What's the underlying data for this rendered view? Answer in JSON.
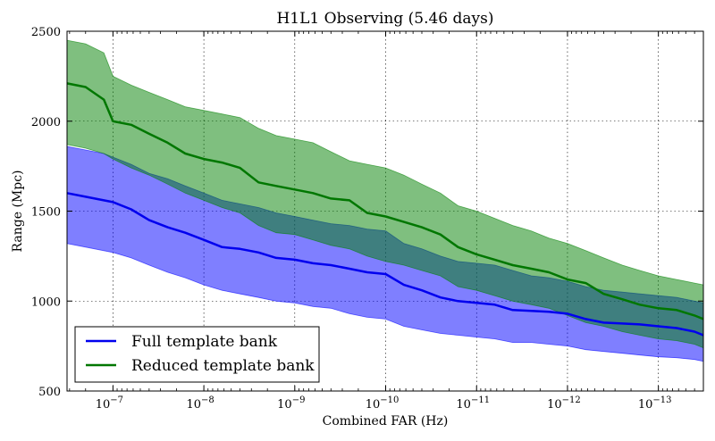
{
  "chart_data": {
    "type": "line",
    "title": "H1L1 Observing (5.46 days)",
    "xlabel": "Combined FAR (Hz)",
    "ylabel": "Range (Mpc)",
    "x_scale": "log",
    "x_reversed": true,
    "xlim": [
      3.2e-07,
      3.2e-14
    ],
    "ylim": [
      500,
      2500
    ],
    "grid": true,
    "legend_position": "lower-left",
    "x_ticks": [
      {
        "value": 1e-07,
        "base": "10",
        "exp": "−7"
      },
      {
        "value": 1e-08,
        "base": "10",
        "exp": "−8"
      },
      {
        "value": 1e-09,
        "base": "10",
        "exp": "−9"
      },
      {
        "value": 1e-10,
        "base": "10",
        "exp": "−10"
      },
      {
        "value": 1e-11,
        "base": "10",
        "exp": "−11"
      },
      {
        "value": 1e-12,
        "base": "10",
        "exp": "−12"
      },
      {
        "value": 1e-13,
        "base": "10",
        "exp": "−13"
      }
    ],
    "y_ticks": [
      {
        "value": 500,
        "label": "500"
      },
      {
        "value": 1000,
        "label": "1000"
      },
      {
        "value": 1500,
        "label": "1500"
      },
      {
        "value": 2000,
        "label": "2000"
      },
      {
        "value": 2500,
        "label": "2500"
      }
    ],
    "x": [
      3.2e-07,
      2e-07,
      1.26e-07,
      1e-07,
      6.3e-08,
      4e-08,
      2.5e-08,
      1.6e-08,
      1e-08,
      6.3e-09,
      4e-09,
      2.5e-09,
      1.6e-09,
      1e-09,
      6.3e-10,
      4e-10,
      2.5e-10,
      1.6e-10,
      1e-10,
      6.3e-11,
      4e-11,
      2.5e-11,
      1.6e-11,
      1e-11,
      6.3e-12,
      4e-12,
      2.5e-12,
      1.6e-12,
      1e-12,
      6.3e-13,
      4e-13,
      2.5e-13,
      1.6e-13,
      1e-13,
      6.3e-14,
      4e-14,
      3.2e-14
    ],
    "series": [
      {
        "name": "Full template bank",
        "color": "#0000ee",
        "band_color": "#0000ff",
        "values": [
          1600,
          1580,
          1560,
          1550,
          1510,
          1450,
          1410,
          1380,
          1340,
          1300,
          1290,
          1270,
          1240,
          1230,
          1210,
          1200,
          1180,
          1160,
          1150,
          1090,
          1060,
          1020,
          1000,
          990,
          980,
          950,
          945,
          940,
          930,
          900,
          880,
          875,
          870,
          860,
          850,
          830,
          810
        ],
        "lower": [
          1320,
          1300,
          1280,
          1270,
          1240,
          1200,
          1160,
          1130,
          1090,
          1060,
          1040,
          1020,
          1000,
          990,
          970,
          960,
          930,
          910,
          900,
          860,
          840,
          820,
          810,
          800,
          790,
          770,
          770,
          760,
          750,
          730,
          720,
          710,
          700,
          690,
          685,
          675,
          665
        ],
        "upper": [
          1860,
          1840,
          1820,
          1800,
          1760,
          1710,
          1680,
          1640,
          1600,
          1560,
          1540,
          1520,
          1490,
          1470,
          1450,
          1430,
          1420,
          1400,
          1390,
          1320,
          1290,
          1250,
          1220,
          1210,
          1200,
          1170,
          1140,
          1130,
          1110,
          1080,
          1060,
          1050,
          1040,
          1030,
          1020,
          1000,
          990
        ]
      },
      {
        "name": "Reduced template bank",
        "color": "#007700",
        "band_color": "#008000",
        "values": [
          2210,
          2190,
          2120,
          2000,
          1980,
          1930,
          1880,
          1820,
          1790,
          1770,
          1740,
          1660,
          1640,
          1620,
          1600,
          1570,
          1560,
          1490,
          1470,
          1440,
          1410,
          1370,
          1300,
          1260,
          1230,
          1200,
          1180,
          1160,
          1120,
          1100,
          1040,
          1010,
          980,
          960,
          950,
          920,
          900
        ],
        "lower": [
          1870,
          1850,
          1820,
          1790,
          1740,
          1700,
          1650,
          1600,
          1560,
          1520,
          1490,
          1420,
          1380,
          1370,
          1340,
          1310,
          1290,
          1250,
          1220,
          1200,
          1170,
          1140,
          1080,
          1060,
          1030,
          1000,
          980,
          960,
          920,
          880,
          860,
          830,
          810,
          790,
          780,
          760,
          740
        ],
        "upper": [
          2450,
          2430,
          2380,
          2250,
          2200,
          2160,
          2120,
          2080,
          2060,
          2040,
          2020,
          1960,
          1920,
          1900,
          1880,
          1830,
          1780,
          1760,
          1740,
          1700,
          1650,
          1600,
          1530,
          1500,
          1460,
          1420,
          1390,
          1350,
          1320,
          1280,
          1240,
          1200,
          1170,
          1140,
          1120,
          1100,
          1090
        ]
      }
    ]
  }
}
